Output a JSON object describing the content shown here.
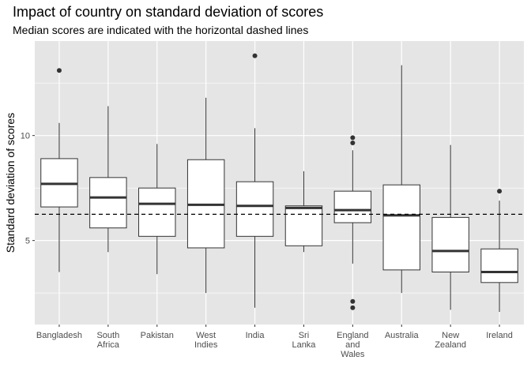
{
  "chart_data": {
    "type": "boxplot",
    "title": "Impact of country on standard deviation of scores",
    "subtitle": "Median scores are indicated with the horizontal dashed lines",
    "xlabel": "",
    "ylabel": "Standard deviation of scores",
    "ylim": [
      1.0,
      14.5
    ],
    "yticks": [
      5,
      10
    ],
    "grid": true,
    "reference_line": 6.25,
    "colors": {
      "panel": "#e5e5e5",
      "grid": "#ffffff",
      "box_fill": "#ffffff",
      "stroke": "#333333"
    },
    "boxes": [
      {
        "label": [
          "Bangladesh"
        ],
        "min": 3.5,
        "q1": 6.6,
        "median": 7.7,
        "q3": 8.9,
        "max": 10.6,
        "outliers": [
          13.1
        ]
      },
      {
        "label": [
          "South",
          "Africa"
        ],
        "min": 4.45,
        "q1": 5.6,
        "median": 7.05,
        "q3": 8.0,
        "max": 11.4,
        "outliers": []
      },
      {
        "label": [
          "Pakistan"
        ],
        "min": 3.4,
        "q1": 5.2,
        "median": 6.75,
        "q3": 7.5,
        "max": 9.6,
        "outliers": []
      },
      {
        "label": [
          "West",
          "Indies"
        ],
        "min": 2.5,
        "q1": 4.65,
        "median": 6.7,
        "q3": 8.85,
        "max": 11.8,
        "outliers": []
      },
      {
        "label": [
          "India"
        ],
        "min": 1.8,
        "q1": 5.2,
        "median": 6.65,
        "q3": 7.8,
        "max": 10.35,
        "outliers": [
          13.8
        ]
      },
      {
        "label": [
          "Sri",
          "Lanka"
        ],
        "min": 4.45,
        "q1": 4.75,
        "median": 6.55,
        "q3": 6.65,
        "max": 8.3,
        "outliers": []
      },
      {
        "label": [
          "England",
          "and",
          "Wales"
        ],
        "min": 3.9,
        "q1": 5.85,
        "median": 6.45,
        "q3": 7.35,
        "max": 9.3,
        "outliers": [
          9.9,
          9.65,
          2.1,
          1.8
        ]
      },
      {
        "label": [
          "Australia"
        ],
        "min": 2.5,
        "q1": 3.6,
        "median": 6.2,
        "q3": 7.65,
        "max": 13.35,
        "outliers": []
      },
      {
        "label": [
          "New",
          "Zealand"
        ],
        "min": 1.7,
        "q1": 3.5,
        "median": 4.5,
        "q3": 6.1,
        "max": 9.55,
        "outliers": []
      },
      {
        "label": [
          "Ireland"
        ],
        "min": 1.6,
        "q1": 3.0,
        "median": 3.5,
        "q3": 4.6,
        "max": 6.9,
        "outliers": [
          7.35
        ]
      }
    ]
  }
}
